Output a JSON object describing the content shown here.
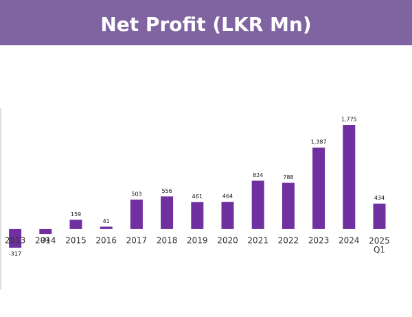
{
  "chart_data": {
    "type": "bar",
    "title": "Net Profit (LKR Mn)",
    "categories": [
      "2013",
      "2014",
      "2015",
      "2016",
      "2017",
      "2018",
      "2019",
      "2020",
      "2021",
      "2022",
      "2023",
      "2024",
      "2025 Q1"
    ],
    "values": [
      -317,
      -84,
      159,
      41,
      503,
      556,
      461,
      464,
      824,
      788,
      1387,
      1775,
      434
    ],
    "value_labels": [
      "-317",
      "-84",
      "159",
      "41",
      "503",
      "556",
      "461",
      "464",
      "824",
      "788",
      "1,387",
      "1,775",
      "434"
    ],
    "color": "#7030a0"
  }
}
